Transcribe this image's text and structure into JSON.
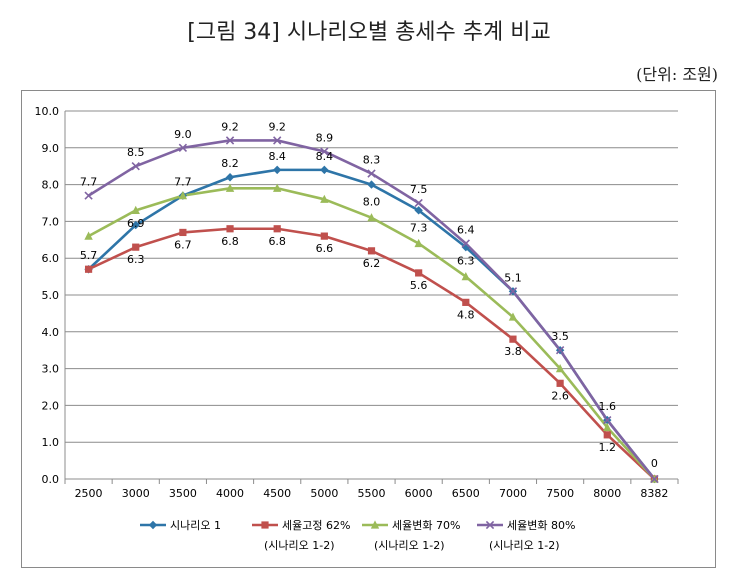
{
  "figure_title": "[그림 34] 시나리오별 총세수 추계 비교",
  "unit": "(단위: 조원)",
  "chart_data": {
    "type": "line",
    "categories": [
      "2500",
      "3000",
      "3500",
      "4000",
      "4500",
      "5000",
      "5500",
      "6000",
      "6500",
      "7000",
      "7500",
      "8000",
      "8382"
    ],
    "ylim": [
      0,
      10
    ],
    "yticks": [
      "0.0",
      "1.0",
      "2.0",
      "3.0",
      "4.0",
      "5.0",
      "6.0",
      "7.0",
      "8.0",
      "9.0",
      "10.0"
    ],
    "grid": true,
    "legend_position": "bottom",
    "series": [
      {
        "name": "시나리오 1",
        "note": "",
        "color": "#2E75A8",
        "marker": "diamond",
        "values": [
          5.7,
          6.9,
          7.7,
          8.2,
          8.4,
          8.4,
          8.0,
          7.3,
          6.3,
          5.1,
          3.5,
          1.6,
          0
        ]
      },
      {
        "name": "세율고정 62%",
        "note": "(시나리오 1-2)",
        "color": "#C0504D",
        "marker": "square",
        "values": [
          5.7,
          6.3,
          6.7,
          6.8,
          6.8,
          6.6,
          6.2,
          5.6,
          4.8,
          3.8,
          2.6,
          1.2,
          0
        ]
      },
      {
        "name": "세율변화 70%",
        "note": "(시나리오 1-2)",
        "color": "#9BBB59",
        "marker": "triangle",
        "values": [
          6.6,
          7.3,
          7.7,
          7.9,
          7.9,
          7.6,
          7.1,
          6.4,
          5.5,
          4.4,
          3.0,
          1.4,
          0
        ]
      },
      {
        "name": "세율변화 80%",
        "note": "(시나리오 1-2)",
        "color": "#8064A2",
        "marker": "x",
        "values": [
          7.7,
          8.5,
          9.0,
          9.2,
          9.2,
          8.9,
          8.3,
          7.5,
          6.4,
          5.1,
          3.5,
          1.6,
          0
        ]
      }
    ],
    "data_labels": [
      {
        "text": "7.7",
        "cat": 0,
        "y": 7.7,
        "dy": -10
      },
      {
        "text": "8.5",
        "cat": 1,
        "y": 8.5,
        "dy": -10
      },
      {
        "text": "9.0",
        "cat": 2,
        "y": 9.0,
        "dy": -10
      },
      {
        "text": "9.2",
        "cat": 3,
        "y": 9.2,
        "dy": -10
      },
      {
        "text": "9.2",
        "cat": 4,
        "y": 9.2,
        "dy": -10
      },
      {
        "text": "8.9",
        "cat": 5,
        "y": 8.9,
        "dy": -10
      },
      {
        "text": "8.3",
        "cat": 6,
        "y": 8.3,
        "dy": -10
      },
      {
        "text": "7.5",
        "cat": 7,
        "y": 7.5,
        "dy": -10
      },
      {
        "text": "6.4",
        "cat": 8,
        "y": 6.4,
        "dy": -10
      },
      {
        "text": "5.1",
        "cat": 9,
        "y": 5.1,
        "dy": -10
      },
      {
        "text": "3.5",
        "cat": 10,
        "y": 3.5,
        "dy": -10
      },
      {
        "text": "1.6",
        "cat": 11,
        "y": 1.6,
        "dy": -10
      },
      {
        "text": "0",
        "cat": 12,
        "y": 0,
        "dy": -12
      },
      {
        "text": "8.2",
        "cat": 3,
        "y": 8.2,
        "dy": -10
      },
      {
        "text": "8.4",
        "cat": 4,
        "y": 8.4,
        "dy": -10
      },
      {
        "text": "8.4",
        "cat": 5,
        "y": 8.4,
        "dy": -10
      },
      {
        "text": "6.9",
        "cat": 1,
        "y": 6.9,
        "dy": 2
      },
      {
        "text": "7.7",
        "cat": 2,
        "y": 7.7,
        "dy": -10
      },
      {
        "text": "8.0",
        "cat": 6,
        "y": 7.1,
        "dy": -12
      },
      {
        "text": "7.3",
        "cat": 7,
        "y": 6.4,
        "dy": -12
      },
      {
        "text": "6.3",
        "cat": 8,
        "y": 5.5,
        "dy": -12
      },
      {
        "text": "5.7",
        "cat": 0,
        "y": 5.7,
        "dy": -10
      },
      {
        "text": "6.3",
        "cat": 1,
        "y": 6.3,
        "dy": 16
      },
      {
        "text": "6.7",
        "cat": 2,
        "y": 6.7,
        "dy": 16
      },
      {
        "text": "6.8",
        "cat": 3,
        "y": 6.8,
        "dy": 16
      },
      {
        "text": "6.8",
        "cat": 4,
        "y": 6.8,
        "dy": 16
      },
      {
        "text": "6.6",
        "cat": 5,
        "y": 6.6,
        "dy": 16
      },
      {
        "text": "6.2",
        "cat": 6,
        "y": 6.2,
        "dy": 16
      },
      {
        "text": "5.6",
        "cat": 7,
        "y": 5.6,
        "dy": 16
      },
      {
        "text": "4.8",
        "cat": 8,
        "y": 4.8,
        "dy": 16
      },
      {
        "text": "3.8",
        "cat": 9,
        "y": 3.8,
        "dy": 16
      },
      {
        "text": "2.6",
        "cat": 10,
        "y": 2.6,
        "dy": 16
      },
      {
        "text": "1.2",
        "cat": 11,
        "y": 1.2,
        "dy": 16
      }
    ]
  }
}
